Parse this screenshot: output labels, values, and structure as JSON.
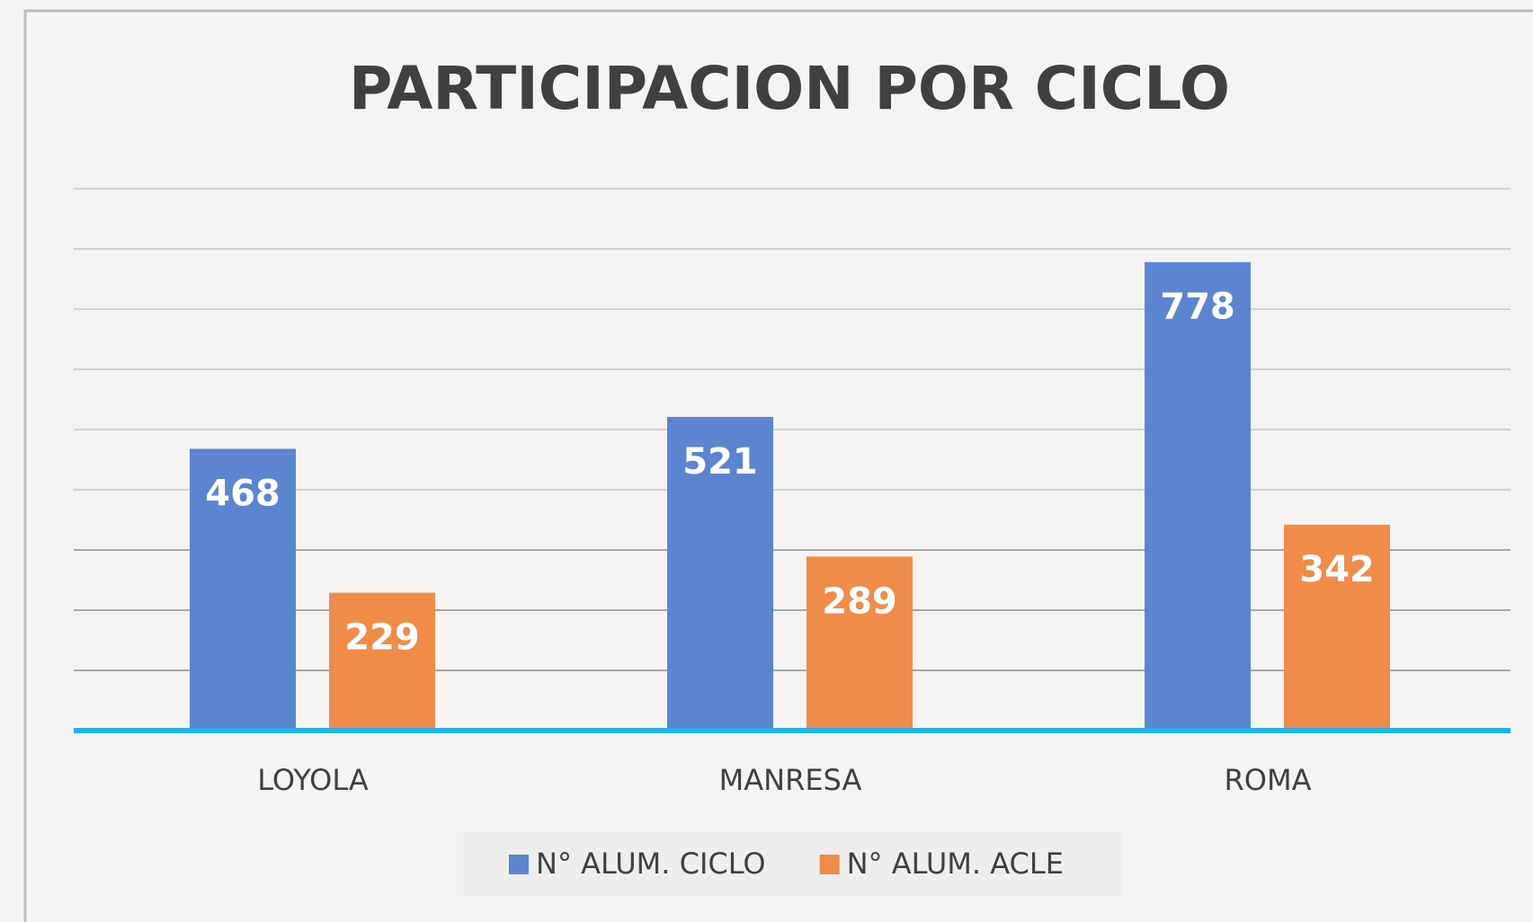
{
  "chart_data": {
    "type": "bar",
    "title": "PARTICIPACION POR CICLO",
    "categories": [
      "LOYOLA",
      "MANRESA",
      "ROMA"
    ],
    "series": [
      {
        "name": "N° ALUM. CICLO",
        "color": "#5b85cf",
        "values": [
          468,
          521,
          778
        ]
      },
      {
        "name": "N° ALUM. ACLE",
        "color": "#ef8c4a",
        "values": [
          229,
          289,
          342
        ]
      }
    ],
    "ylim": [
      0,
      900
    ],
    "yticks": [
      0,
      100,
      200,
      300,
      400,
      500,
      600,
      700,
      800,
      900
    ],
    "grid": true,
    "legend": "bottom"
  }
}
